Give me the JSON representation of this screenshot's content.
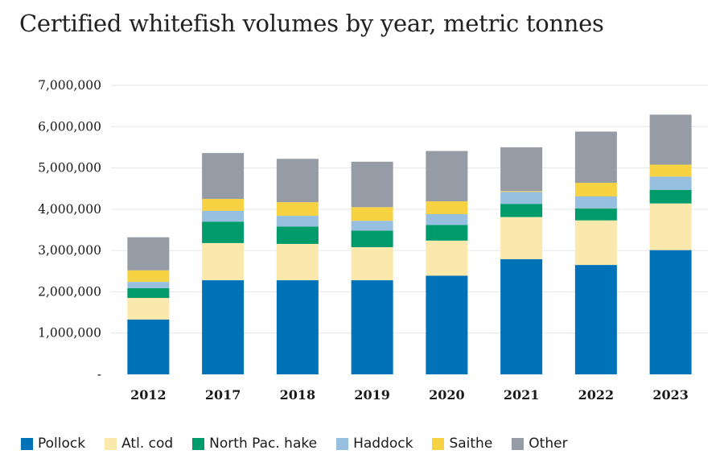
{
  "chart_data": {
    "type": "bar",
    "stacked": true,
    "title": "Certified whitefish volumes by year, metric tonnes",
    "xlabel": "",
    "ylabel": "",
    "ylim": [
      0,
      7000000
    ],
    "yticks": [
      0,
      1000000,
      2000000,
      3000000,
      4000000,
      5000000,
      6000000,
      7000000
    ],
    "ytick_labels": [
      "-",
      "1,000,000",
      "2,000,000",
      "3,000,000",
      "4,000,000",
      "5,000,000",
      "6,000,000",
      "7,000,000"
    ],
    "grid": true,
    "legend_position": "bottom",
    "categories": [
      "2012",
      "2017",
      "2018",
      "2019",
      "2020",
      "2021",
      "2022",
      "2023"
    ],
    "series": [
      {
        "name": "Pollock",
        "color": "#0072b8",
        "values": [
          1330000,
          2280000,
          2280000,
          2280000,
          2390000,
          2790000,
          2650000,
          3010000
        ]
      },
      {
        "name": "Atl. cod",
        "color": "#fbe8ac",
        "values": [
          520000,
          900000,
          880000,
          800000,
          850000,
          1020000,
          1080000,
          1130000
        ]
      },
      {
        "name": "North Pac. hake",
        "color": "#009b6a",
        "values": [
          240000,
          520000,
          420000,
          400000,
          380000,
          320000,
          290000,
          330000
        ]
      },
      {
        "name": "Haddock",
        "color": "#97bfe0",
        "values": [
          150000,
          260000,
          260000,
          240000,
          260000,
          290000,
          290000,
          320000
        ]
      },
      {
        "name": "Saithe",
        "color": "#f7d243",
        "values": [
          280000,
          290000,
          330000,
          330000,
          310000,
          20000,
          330000,
          290000
        ]
      },
      {
        "name": "Other",
        "color": "#959ca6",
        "values": [
          800000,
          1110000,
          1050000,
          1100000,
          1220000,
          1060000,
          1240000,
          1210000
        ]
      }
    ]
  }
}
